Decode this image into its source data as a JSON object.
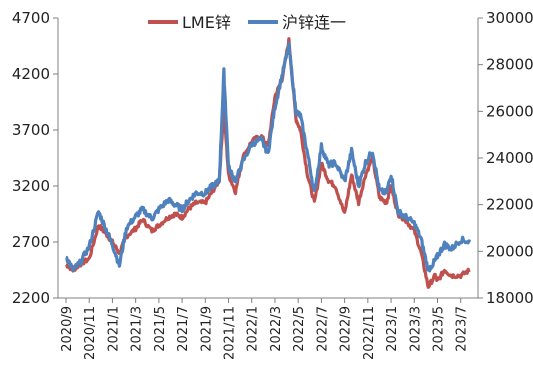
{
  "chart_data": {
    "type": "line",
    "title": "",
    "xlabel": "",
    "ylabel_left": "",
    "ylabel_right": "",
    "x_categories": [
      "2020/9",
      "2020/11",
      "2021/1",
      "2021/3",
      "2021/5",
      "2021/7",
      "2021/9",
      "2021/11",
      "2022/1",
      "2022/3",
      "2022/5",
      "2022/7",
      "2022/9",
      "2022/11",
      "2023/1",
      "2023/3",
      "2023/5",
      "2023/7"
    ],
    "ylim_left": [
      2200,
      4700
    ],
    "yticks_left": [
      "2200",
      "2700",
      "3200",
      "3700",
      "4200",
      "4700"
    ],
    "ylim_right": [
      18000,
      30000
    ],
    "yticks_right": [
      "18000",
      "20000",
      "22000",
      "24000",
      "26000",
      "28000",
      "30000"
    ],
    "grid": false,
    "legend_position": "top",
    "series": [
      {
        "name": "LME锌",
        "axis": "left",
        "color": "#c0504d",
        "x": [
          0,
          0.3,
          0.6,
          1.0,
          1.4,
          1.7,
          2.0,
          2.3,
          2.6,
          3.0,
          3.3,
          3.7,
          4.0,
          4.4,
          4.7,
          5.0,
          5.3,
          5.6,
          6.0,
          6.3,
          6.6,
          6.8,
          7.0,
          7.3,
          7.6,
          8.0,
          8.4,
          8.7,
          9.0,
          9.3,
          9.6,
          9.9,
          10.1,
          10.4,
          10.7,
          11.0,
          11.3,
          11.6,
          12.0,
          12.3,
          12.6,
          12.9,
          13.2,
          13.5,
          13.8,
          14.0,
          14.3,
          14.6,
          15.0,
          15.3,
          15.6,
          15.9,
          16.0,
          16.3,
          16.6,
          17.0,
          17.4
        ],
        "values": [
          2500,
          2450,
          2500,
          2550,
          2850,
          2780,
          2700,
          2600,
          2750,
          2820,
          2900,
          2800,
          2850,
          2920,
          2950,
          2920,
          3000,
          3050,
          3050,
          3150,
          3250,
          3900,
          3300,
          3150,
          3450,
          3600,
          3650,
          3550,
          4000,
          4150,
          4500,
          3800,
          3700,
          3300,
          3050,
          3400,
          3250,
          3200,
          2950,
          3300,
          3050,
          3300,
          3450,
          3100,
          3050,
          3200,
          2950,
          2900,
          2800,
          2600,
          2300,
          2400,
          2350,
          2450,
          2400,
          2400,
          2450
        ]
      },
      {
        "name": "沪锌连一",
        "axis": "right",
        "color": "#4f81bd",
        "x": [
          0,
          0.3,
          0.6,
          1.0,
          1.4,
          1.7,
          2.0,
          2.3,
          2.6,
          3.0,
          3.3,
          3.7,
          4.0,
          4.4,
          4.7,
          5.0,
          5.3,
          5.6,
          6.0,
          6.3,
          6.6,
          6.8,
          7.0,
          7.3,
          7.6,
          8.0,
          8.4,
          8.7,
          9.0,
          9.3,
          9.6,
          9.9,
          10.1,
          10.4,
          10.7,
          11.0,
          11.3,
          11.6,
          12.0,
          12.3,
          12.6,
          12.9,
          13.2,
          13.5,
          13.8,
          14.0,
          14.3,
          14.6,
          15.0,
          15.3,
          15.6,
          15.9,
          16.0,
          16.3,
          16.6,
          17.0,
          17.4
        ],
        "values": [
          19800,
          19200,
          19500,
          20200,
          21700,
          21000,
          20300,
          19400,
          21000,
          21500,
          21800,
          21400,
          21800,
          22200,
          22000,
          21800,
          22200,
          22500,
          22500,
          22800,
          23000,
          27700,
          23600,
          23000,
          23800,
          24600,
          24800,
          24200,
          26200,
          27500,
          28800,
          26000,
          25800,
          24200,
          22500,
          24500,
          23700,
          23800,
          23000,
          24300,
          22800,
          23800,
          24300,
          22600,
          22500,
          23300,
          21700,
          21500,
          21200,
          20500,
          19200,
          19600,
          19800,
          20300,
          20100,
          20500,
          20400
        ]
      }
    ]
  }
}
